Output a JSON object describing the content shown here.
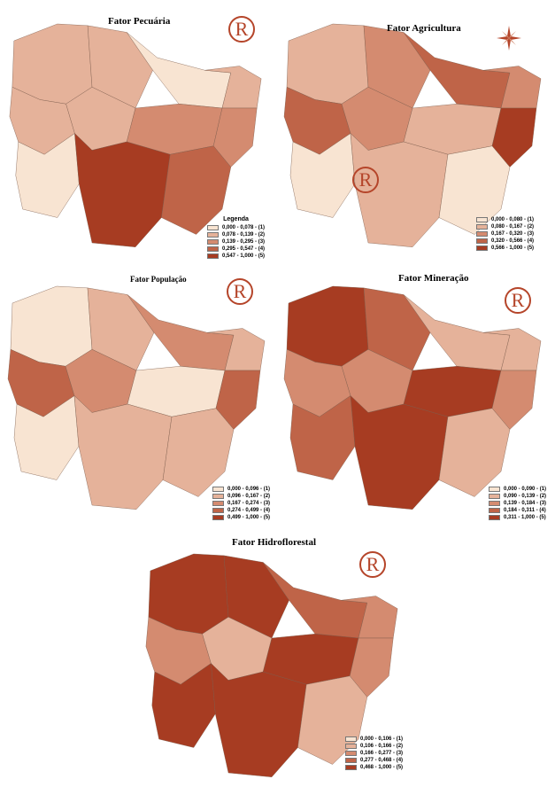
{
  "panels": [
    {
      "id": "pecuaria",
      "title": "Fator Pecuária",
      "legend_title": "Legenda",
      "classes": [
        {
          "label": "0,000 - 0,078 - (1)",
          "color": "#f8e4d2"
        },
        {
          "label": "0,078 - 0,139 - (2)",
          "color": "#e5b29a"
        },
        {
          "label": "0,139 - 0,295 - (3)",
          "color": "#d48b70"
        },
        {
          "label": "0,295 - 0,547 - (4)",
          "color": "#bf6448"
        },
        {
          "label": "0,547 - 1,000 - (5)",
          "color": "#a73c22"
        }
      ]
    },
    {
      "id": "agricultura",
      "title": "Fator Agricultura",
      "legend_title": "",
      "classes": [
        {
          "label": "0,000 - 0,080 - (1)",
          "color": "#f8e4d2"
        },
        {
          "label": "0,080 - 0,167 - (2)",
          "color": "#e5b29a"
        },
        {
          "label": "0,167 - 0,320 - (3)",
          "color": "#d48b70"
        },
        {
          "label": "0,320 - 0,566 - (4)",
          "color": "#bf6448"
        },
        {
          "label": "0,566 - 1,000 - (5)",
          "color": "#a73c22"
        }
      ]
    },
    {
      "id": "populacao",
      "title": "Fator População",
      "legend_title": "",
      "classes": [
        {
          "label": "0,000 - 0,096 - (1)",
          "color": "#f8e4d2"
        },
        {
          "label": "0,096 - 0,167 - (2)",
          "color": "#e5b29a"
        },
        {
          "label": "0,167 - 0,274 - (3)",
          "color": "#d48b70"
        },
        {
          "label": "0,274 - 0,499 - (4)",
          "color": "#bf6448"
        },
        {
          "label": "0,499 - 1,000 - (5)",
          "color": "#a73c22"
        }
      ]
    },
    {
      "id": "mineracao",
      "title": "Fator Mineração",
      "legend_title": "",
      "classes": [
        {
          "label": "0,000 - 0,090 - (1)",
          "color": "#f8e4d2"
        },
        {
          "label": "0,090 - 0,139 - (2)",
          "color": "#e5b29a"
        },
        {
          "label": "0,139 - 0,184 - (3)",
          "color": "#d48b70"
        },
        {
          "label": "0,184 - 0,311 - (4)",
          "color": "#bf6448"
        },
        {
          "label": "0,311 - 1,000 - (5)",
          "color": "#a73c22"
        }
      ]
    },
    {
      "id": "hidroflorestal",
      "title": "Fator Hidroflorestal",
      "legend_title": "",
      "classes": [
        {
          "label": "0,000 - 0,106 - (1)",
          "color": "#f8e4d2"
        },
        {
          "label": "0,106 - 0,166 - (2)",
          "color": "#e5b29a"
        },
        {
          "label": "0,166 - 0,277 - (3)",
          "color": "#d48b70"
        },
        {
          "label": "0,277 - 0,468 - (4)",
          "color": "#bf6448"
        },
        {
          "label": "0,468 - 1,000 - (5)",
          "color": "#a73c22"
        }
      ]
    }
  ],
  "region_classes": {
    "pecuaria": {
      "nw": 2,
      "n": 2,
      "ne": 1,
      "w": 2,
      "c": 3,
      "e": 3,
      "sw": 1,
      "s": 5,
      "se": 4,
      "coast": 2,
      "mid": 2
    },
    "agricultura": {
      "nw": 2,
      "n": 3,
      "ne": 4,
      "w": 4,
      "c": 2,
      "e": 5,
      "sw": 1,
      "s": 2,
      "se": 1,
      "coast": 3,
      "mid": 3
    },
    "populacao": {
      "nw": 1,
      "n": 2,
      "ne": 3,
      "w": 4,
      "c": 1,
      "e": 4,
      "sw": 1,
      "s": 2,
      "se": 2,
      "coast": 2,
      "mid": 3
    },
    "mineracao": {
      "nw": 5,
      "n": 4,
      "ne": 2,
      "w": 3,
      "c": 5,
      "e": 3,
      "sw": 4,
      "s": 5,
      "se": 2,
      "coast": 2,
      "mid": 3
    },
    "hidroflorestal": {
      "nw": 5,
      "n": 5,
      "ne": 4,
      "w": 3,
      "c": 5,
      "e": 3,
      "sw": 5,
      "s": 5,
      "se": 2,
      "coast": 3,
      "mid": 2
    }
  },
  "rmark_symbol": "R",
  "compass_icon": "compass-rose-icon",
  "colors": {
    "border": "#7a5a4a",
    "accent": "#b5452a"
  }
}
